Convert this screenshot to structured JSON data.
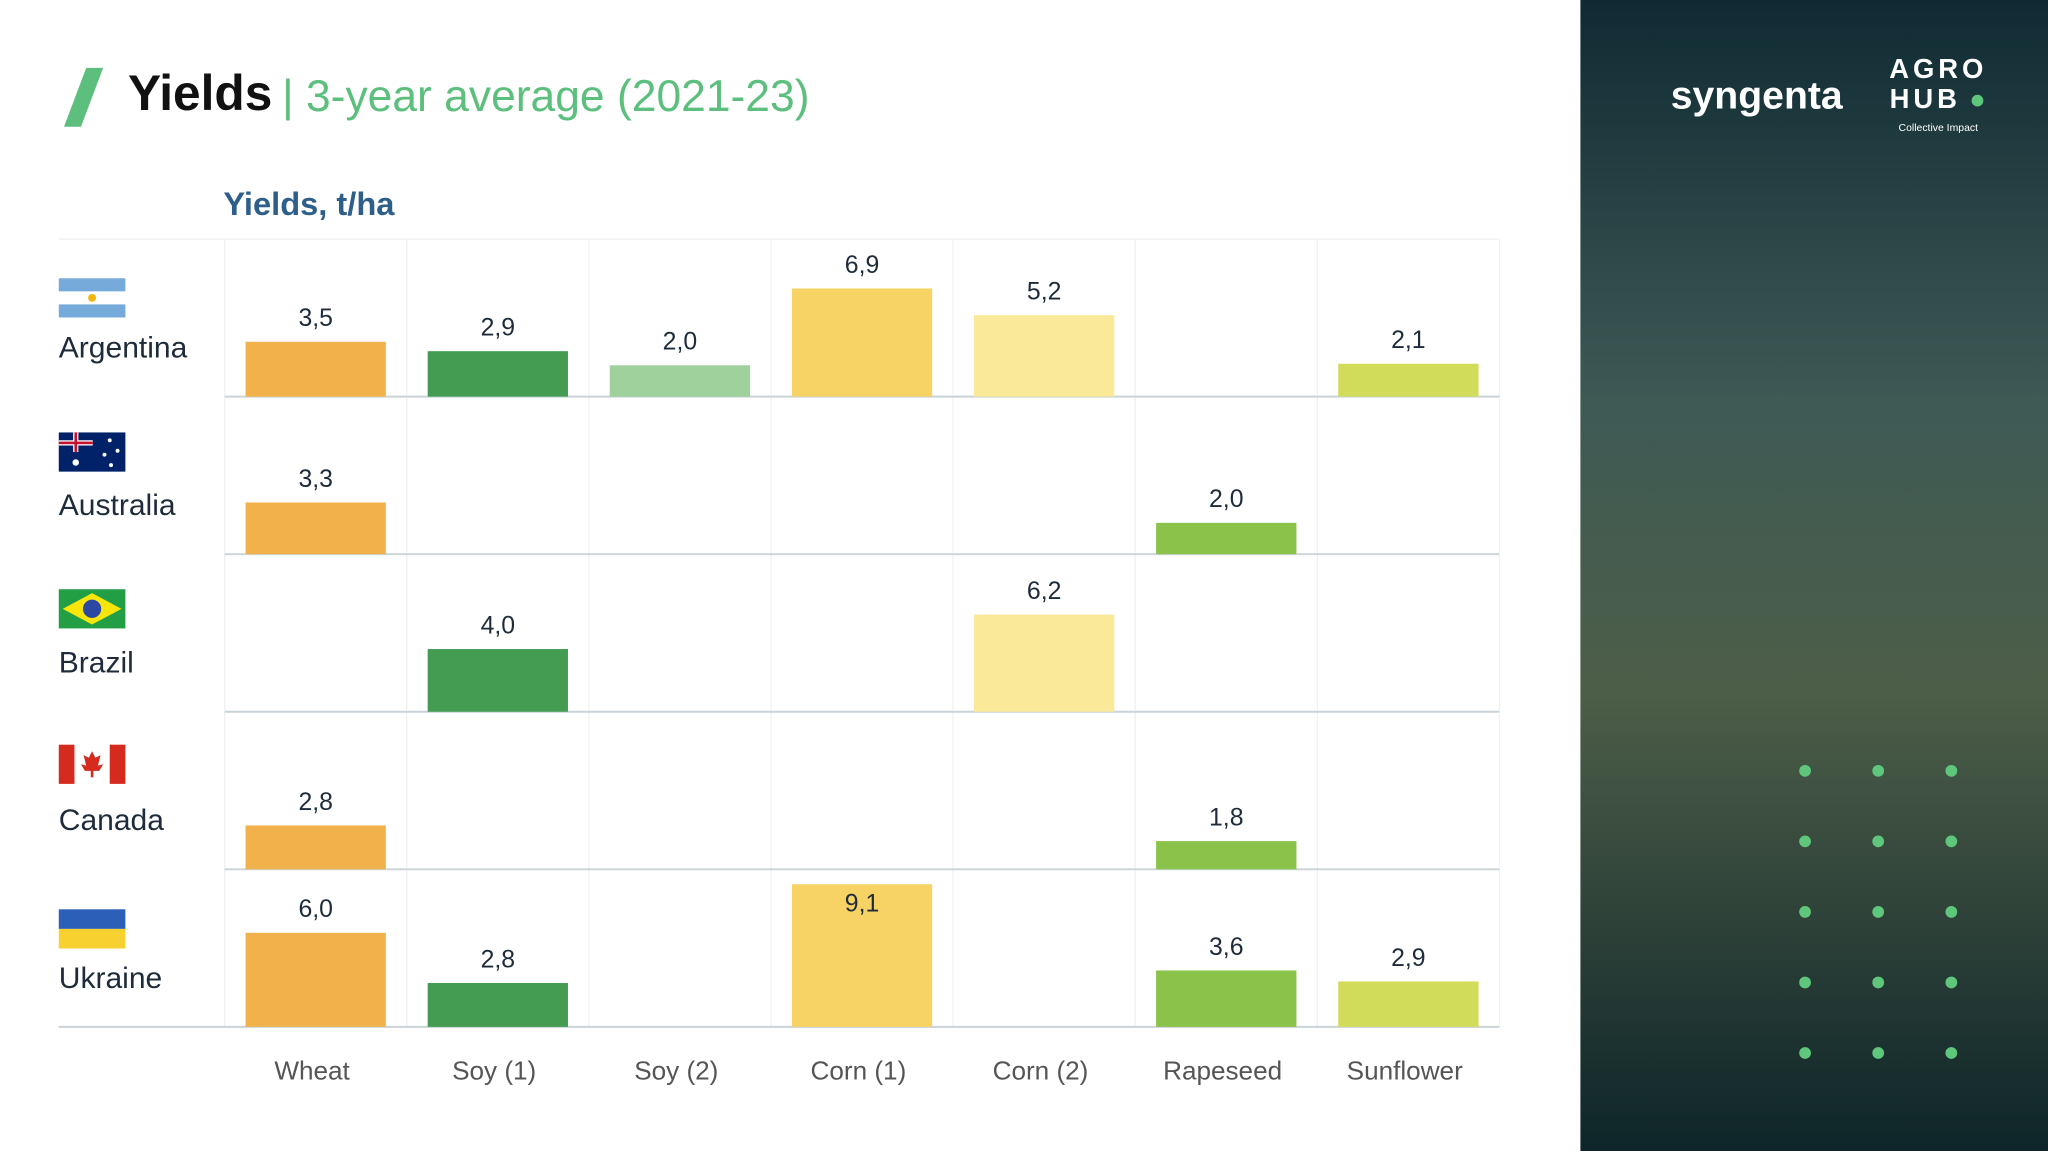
{
  "chart_data": {
    "type": "bar",
    "title": "Yields",
    "subtitle": "| 3-year average (2021-23)",
    "y_label": "Yields, t/ha",
    "categories": [
      "Wheat",
      "Soy (1)",
      "Soy (2)",
      "Corn (1)",
      "Corn (2)",
      "Rapeseed",
      "Sunflower"
    ],
    "colors": [
      "#f2b24b",
      "#449c52",
      "#9fd19c",
      "#f7d264",
      "#fbe99a",
      "#8bc24a",
      "#d1dd5a"
    ],
    "ylim": [
      0,
      10
    ],
    "series": [
      {
        "name": "Argentina",
        "values": [
          3.5,
          2.9,
          2.0,
          6.9,
          5.2,
          null,
          2.1
        ],
        "value_labels": [
          "3,5",
          "2,9",
          "2,0",
          "6,9",
          "5,2",
          null,
          "2,1"
        ]
      },
      {
        "name": "Australia",
        "values": [
          3.3,
          null,
          null,
          null,
          null,
          2.0,
          null
        ],
        "value_labels": [
          "3,3",
          null,
          null,
          null,
          null,
          "2,0",
          null
        ]
      },
      {
        "name": "Brazil",
        "values": [
          null,
          4.0,
          null,
          null,
          6.2,
          null,
          null
        ],
        "value_labels": [
          null,
          "4,0",
          null,
          null,
          "6,2",
          null,
          null
        ]
      },
      {
        "name": "Canada",
        "values": [
          2.8,
          null,
          null,
          null,
          null,
          1.8,
          null
        ],
        "value_labels": [
          "2,8",
          null,
          null,
          null,
          null,
          "1,8",
          null
        ]
      },
      {
        "name": "Ukraine",
        "values": [
          6.0,
          2.8,
          null,
          9.1,
          null,
          3.6,
          2.9
        ],
        "value_labels": [
          "6,0",
          "2,8",
          null,
          "9,1",
          null,
          "3,6",
          "2,9"
        ]
      }
    ]
  },
  "branding": {
    "company": "syngenta",
    "hub_line1": "AGRO",
    "hub_line2": "HUB",
    "tagline": "Collective Impact"
  }
}
